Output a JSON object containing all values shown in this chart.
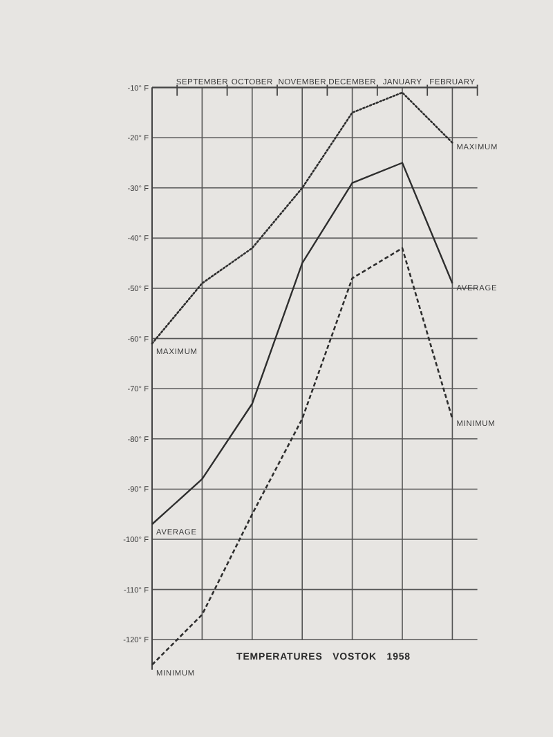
{
  "chart_data": {
    "type": "line",
    "title": "TEMPERATURES VOSTOK 1958",
    "categories": [
      null,
      "SEPTEMBER",
      "OCTOBER",
      "NOVEMBER",
      "DECEMBER",
      "JANUARY",
      "FEBRUARY"
    ],
    "series": [
      {
        "name": "MAXIMUM",
        "color": "#2e2e2e",
        "line_style": "dotted",
        "values": [
          -61,
          -49,
          -42,
          -30,
          -15,
          -11,
          -21
        ]
      },
      {
        "name": "AVERAGE",
        "color": "#2e2e2e",
        "line_style": "solid",
        "values": [
          -97,
          -88,
          -73,
          -45,
          -29,
          -25,
          -49
        ]
      },
      {
        "name": "MINIMUM",
        "color": "#2e2e2e",
        "line_style": "dashed",
        "values": [
          -125,
          -115,
          -95,
          -76,
          -48,
          -42,
          -76
        ]
      }
    ],
    "ylim": [
      -126,
      -10
    ],
    "yticks": [
      {
        "value": -10,
        "label": "-10° F"
      },
      {
        "value": -20,
        "label": "-20° F"
      },
      {
        "value": -30,
        "label": "-30° F"
      },
      {
        "value": -40,
        "label": "-40° F"
      },
      {
        "value": -50,
        "label": "-50° F"
      },
      {
        "value": -60,
        "label": "-60° F"
      },
      {
        "value": -70,
        "label": "-70° F"
      },
      {
        "value": -80,
        "label": "-80° F"
      },
      {
        "value": -90,
        "label": "-90° F"
      },
      {
        "value": -100,
        "label": "-100° F"
      },
      {
        "value": -110,
        "label": "-110° F"
      },
      {
        "value": -120,
        "label": "-120° F"
      }
    ],
    "grid": true
  }
}
